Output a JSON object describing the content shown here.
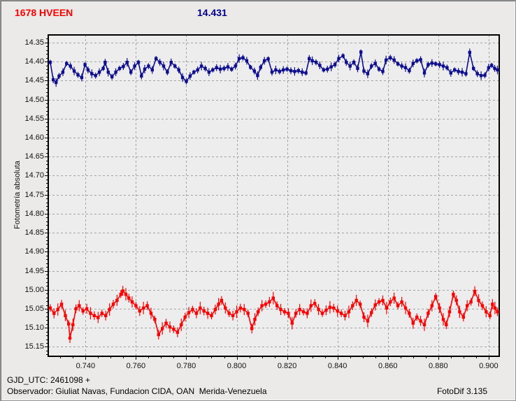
{
  "header": {
    "object_name": "1678 HVEEN",
    "object_name_color": "#FF0000",
    "comp_value": "14.431",
    "comp_value_color": "#00008B"
  },
  "footer": {
    "gjd_line": "GJD_UTC: 2461098 +",
    "observer_line": "Observador: Giuliat Navas, Fundacion CIDA, OAN  Merida-Venezuela",
    "app_version": "FotoDif 3.135"
  },
  "colors": {
    "background": "#ebeae8",
    "plot_fill": "#ededed",
    "grid": "#a2a2a2",
    "axis": "#000000",
    "blue_series": "#0d0d90",
    "red_series": "#ff0000"
  },
  "chart_data": {
    "type": "scatter",
    "title": "",
    "xlabel": "",
    "ylabel": "Fotometría absoluta",
    "grid": "dashed",
    "legend": "none",
    "y_axis": {
      "min": 14.33,
      "max": 15.175,
      "increases_downward": true,
      "tick_values": [
        14.35,
        14.4,
        14.45,
        14.5,
        14.55,
        14.6,
        14.65,
        14.7,
        14.75,
        14.8,
        14.85,
        14.9,
        14.95,
        15.0,
        15.05,
        15.1,
        15.15
      ],
      "tick_labels": [
        "14.35",
        "14.40",
        "14.45",
        "14.50",
        "14.55",
        "14.60",
        "14.65",
        "14.70",
        "14.75",
        "14.80",
        "14.85",
        "14.90",
        "14.95",
        "15.00",
        "15.05",
        "15.10",
        "15.15"
      ],
      "minor_step": 0.01
    },
    "x_axis": {
      "min": 0.7252,
      "max": 0.9042,
      "tick_values": [
        0.74,
        0.76,
        0.78,
        0.8,
        0.82,
        0.84,
        0.86,
        0.88,
        0.9
      ],
      "tick_labels": [
        "0.740",
        "0.760",
        "0.780",
        "0.800",
        "0.820",
        "0.840",
        "0.860",
        "0.880",
        "0.900"
      ],
      "minor_step": 0.005
    },
    "series": [
      {
        "id": "blue",
        "color": "#0d0d90",
        "marker": "square",
        "errorbar_half": 0.009,
        "points": [
          [
            0.726,
            14.402
          ],
          [
            0.7272,
            14.448
          ],
          [
            0.7283,
            14.455
          ],
          [
            0.7295,
            14.438
          ],
          [
            0.731,
            14.428
          ],
          [
            0.7325,
            14.405
          ],
          [
            0.734,
            14.412
          ],
          [
            0.7355,
            14.425
          ],
          [
            0.737,
            14.435
          ],
          [
            0.7385,
            14.442
          ],
          [
            0.7398,
            14.408
          ],
          [
            0.741,
            14.422
          ],
          [
            0.7425,
            14.432
          ],
          [
            0.744,
            14.437
          ],
          [
            0.7455,
            14.428
          ],
          [
            0.747,
            14.418
          ],
          [
            0.7478,
            14.402
          ],
          [
            0.749,
            14.428
          ],
          [
            0.7505,
            14.44
          ],
          [
            0.752,
            14.428
          ],
          [
            0.7535,
            14.418
          ],
          [
            0.755,
            14.413
          ],
          [
            0.7565,
            14.402
          ],
          [
            0.758,
            14.428
          ],
          [
            0.7595,
            14.412
          ],
          [
            0.761,
            14.402
          ],
          [
            0.7622,
            14.438
          ],
          [
            0.7635,
            14.42
          ],
          [
            0.765,
            14.412
          ],
          [
            0.7665,
            14.422
          ],
          [
            0.768,
            14.392
          ],
          [
            0.7695,
            14.402
          ],
          [
            0.771,
            14.412
          ],
          [
            0.7725,
            14.428
          ],
          [
            0.774,
            14.402
          ],
          [
            0.7755,
            14.412
          ],
          [
            0.777,
            14.422
          ],
          [
            0.7785,
            14.442
          ],
          [
            0.78,
            14.452
          ],
          [
            0.7815,
            14.438
          ],
          [
            0.783,
            14.428
          ],
          [
            0.7845,
            14.422
          ],
          [
            0.786,
            14.412
          ],
          [
            0.7875,
            14.418
          ],
          [
            0.789,
            14.428
          ],
          [
            0.7905,
            14.422
          ],
          [
            0.792,
            14.416
          ],
          [
            0.7935,
            14.42
          ],
          [
            0.795,
            14.418
          ],
          [
            0.7965,
            14.414
          ],
          [
            0.798,
            14.42
          ],
          [
            0.7995,
            14.412
          ],
          [
            0.801,
            14.392
          ],
          [
            0.8025,
            14.39
          ],
          [
            0.804,
            14.398
          ],
          [
            0.8055,
            14.415
          ],
          [
            0.807,
            14.425
          ],
          [
            0.8083,
            14.437
          ],
          [
            0.8095,
            14.415
          ],
          [
            0.811,
            14.398
          ],
          [
            0.8125,
            14.393
          ],
          [
            0.814,
            14.428
          ],
          [
            0.8155,
            14.422
          ],
          [
            0.817,
            14.426
          ],
          [
            0.8185,
            14.422
          ],
          [
            0.82,
            14.42
          ],
          [
            0.8215,
            14.424
          ],
          [
            0.823,
            14.426
          ],
          [
            0.8245,
            14.424
          ],
          [
            0.826,
            14.428
          ],
          [
            0.8275,
            14.43
          ],
          [
            0.8288,
            14.392
          ],
          [
            0.83,
            14.398
          ],
          [
            0.8315,
            14.402
          ],
          [
            0.833,
            14.41
          ],
          [
            0.8345,
            14.422
          ],
          [
            0.836,
            14.42
          ],
          [
            0.8375,
            14.414
          ],
          [
            0.839,
            14.408
          ],
          [
            0.8405,
            14.392
          ],
          [
            0.8422,
            14.385
          ],
          [
            0.8435,
            14.402
          ],
          [
            0.845,
            14.412
          ],
          [
            0.8465,
            14.402
          ],
          [
            0.848,
            14.418
          ],
          [
            0.8493,
            14.375
          ],
          [
            0.8505,
            14.425
          ],
          [
            0.852,
            14.432
          ],
          [
            0.8535,
            14.412
          ],
          [
            0.855,
            14.405
          ],
          [
            0.8565,
            14.42
          ],
          [
            0.858,
            14.426
          ],
          [
            0.8593,
            14.396
          ],
          [
            0.861,
            14.39
          ],
          [
            0.8625,
            14.396
          ],
          [
            0.864,
            14.406
          ],
          [
            0.8655,
            14.412
          ],
          [
            0.867,
            14.416
          ],
          [
            0.8685,
            14.424
          ],
          [
            0.87,
            14.405
          ],
          [
            0.8715,
            14.398
          ],
          [
            0.873,
            14.395
          ],
          [
            0.8745,
            14.43
          ],
          [
            0.876,
            14.408
          ],
          [
            0.8775,
            14.404
          ],
          [
            0.879,
            14.406
          ],
          [
            0.8805,
            14.408
          ],
          [
            0.882,
            14.412
          ],
          [
            0.8835,
            14.416
          ],
          [
            0.885,
            14.43
          ],
          [
            0.8865,
            14.422
          ],
          [
            0.888,
            14.426
          ],
          [
            0.8895,
            14.428
          ],
          [
            0.891,
            14.432
          ],
          [
            0.8925,
            14.376
          ],
          [
            0.894,
            14.418
          ],
          [
            0.8955,
            14.432
          ],
          [
            0.897,
            14.437
          ],
          [
            0.8985,
            14.436
          ],
          [
            0.9,
            14.416
          ],
          [
            0.9012,
            14.41
          ],
          [
            0.9024,
            14.418
          ],
          [
            0.9035,
            14.422
          ]
        ]
      },
      {
        "id": "red",
        "color": "#ff0000",
        "marker": "square",
        "errorbar_half": 0.013,
        "points": [
          [
            0.726,
            15.048
          ],
          [
            0.7275,
            15.062
          ],
          [
            0.729,
            15.052
          ],
          [
            0.7305,
            15.038
          ],
          [
            0.732,
            15.068
          ],
          [
            0.7333,
            15.09
          ],
          [
            0.7338,
            15.127
          ],
          [
            0.735,
            15.092
          ],
          [
            0.7362,
            15.05
          ],
          [
            0.7375,
            15.042
          ],
          [
            0.739,
            15.056
          ],
          [
            0.7405,
            15.05
          ],
          [
            0.742,
            15.062
          ],
          [
            0.7435,
            15.068
          ],
          [
            0.745,
            15.073
          ],
          [
            0.7465,
            15.062
          ],
          [
            0.748,
            15.068
          ],
          [
            0.7495,
            15.052
          ],
          [
            0.751,
            15.038
          ],
          [
            0.7525,
            15.028
          ],
          [
            0.754,
            15.012
          ],
          [
            0.7548,
            15.003
          ],
          [
            0.756,
            15.012
          ],
          [
            0.7572,
            15.022
          ],
          [
            0.7585,
            15.032
          ],
          [
            0.76,
            15.042
          ],
          [
            0.7615,
            15.056
          ],
          [
            0.763,
            15.048
          ],
          [
            0.7645,
            15.042
          ],
          [
            0.766,
            15.062
          ],
          [
            0.7675,
            15.078
          ],
          [
            0.769,
            15.118
          ],
          [
            0.7705,
            15.102
          ],
          [
            0.772,
            15.088
          ],
          [
            0.7735,
            15.098
          ],
          [
            0.775,
            15.104
          ],
          [
            0.7765,
            15.112
          ],
          [
            0.778,
            15.092
          ],
          [
            0.7795,
            15.072
          ],
          [
            0.781,
            15.06
          ],
          [
            0.7825,
            15.052
          ],
          [
            0.784,
            15.062
          ],
          [
            0.7855,
            15.048
          ],
          [
            0.787,
            15.056
          ],
          [
            0.7885,
            15.062
          ],
          [
            0.79,
            15.068
          ],
          [
            0.7915,
            15.052
          ],
          [
            0.7928,
            15.038
          ],
          [
            0.794,
            15.028
          ],
          [
            0.7955,
            15.048
          ],
          [
            0.797,
            15.062
          ],
          [
            0.7985,
            15.068
          ],
          [
            0.8,
            15.058
          ],
          [
            0.8015,
            15.048
          ],
          [
            0.803,
            15.052
          ],
          [
            0.8045,
            15.062
          ],
          [
            0.806,
            15.102
          ],
          [
            0.8072,
            15.078
          ],
          [
            0.8085,
            15.058
          ],
          [
            0.81,
            15.042
          ],
          [
            0.8115,
            15.038
          ],
          [
            0.813,
            15.032
          ],
          [
            0.8145,
            15.022
          ],
          [
            0.816,
            15.042
          ],
          [
            0.8175,
            15.052
          ],
          [
            0.819,
            15.058
          ],
          [
            0.8205,
            15.062
          ],
          [
            0.822,
            15.088
          ],
          [
            0.8235,
            15.062
          ],
          [
            0.825,
            15.052
          ],
          [
            0.8265,
            15.058
          ],
          [
            0.828,
            15.062
          ],
          [
            0.8295,
            15.042
          ],
          [
            0.831,
            15.036
          ],
          [
            0.8325,
            15.052
          ],
          [
            0.834,
            15.062
          ],
          [
            0.8355,
            15.054
          ],
          [
            0.837,
            15.046
          ],
          [
            0.8385,
            15.048
          ],
          [
            0.84,
            15.056
          ],
          [
            0.8415,
            15.062
          ],
          [
            0.843,
            15.068
          ],
          [
            0.8445,
            15.058
          ],
          [
            0.846,
            15.042
          ],
          [
            0.8475,
            15.028
          ],
          [
            0.849,
            15.038
          ],
          [
            0.8505,
            15.072
          ],
          [
            0.852,
            15.082
          ],
          [
            0.8535,
            15.06
          ],
          [
            0.855,
            15.04
          ],
          [
            0.8565,
            15.032
          ],
          [
            0.858,
            15.028
          ],
          [
            0.8595,
            15.048
          ],
          [
            0.861,
            15.032
          ],
          [
            0.8625,
            15.022
          ],
          [
            0.864,
            15.042
          ],
          [
            0.8655,
            15.032
          ],
          [
            0.867,
            15.048
          ],
          [
            0.8685,
            15.062
          ],
          [
            0.87,
            15.088
          ],
          [
            0.8715,
            15.072
          ],
          [
            0.873,
            15.082
          ],
          [
            0.8745,
            15.092
          ],
          [
            0.876,
            15.062
          ],
          [
            0.8775,
            15.042
          ],
          [
            0.879,
            15.018
          ],
          [
            0.8805,
            15.048
          ],
          [
            0.882,
            15.078
          ],
          [
            0.8832,
            15.092
          ],
          [
            0.8845,
            15.058
          ],
          [
            0.886,
            15.012
          ],
          [
            0.8872,
            15.028
          ],
          [
            0.8885,
            15.058
          ],
          [
            0.89,
            15.072
          ],
          [
            0.8915,
            15.042
          ],
          [
            0.893,
            15.032
          ],
          [
            0.8945,
            15.004
          ],
          [
            0.896,
            15.028
          ],
          [
            0.8975,
            15.042
          ],
          [
            0.899,
            15.058
          ],
          [
            0.9005,
            15.068
          ],
          [
            0.9015,
            15.038
          ],
          [
            0.9025,
            15.048
          ],
          [
            0.9035,
            15.058
          ]
        ]
      }
    ]
  }
}
